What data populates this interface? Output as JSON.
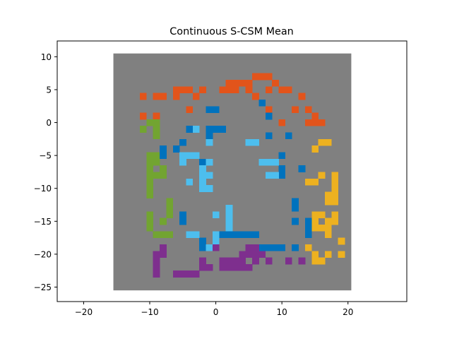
{
  "chart_data": {
    "type": "heatmap",
    "title": "Continuous S-CSM Mean",
    "xlabel": "",
    "ylabel": "",
    "xlim": [
      -24,
      28.9
    ],
    "ylim": [
      -27.2,
      12.4
    ],
    "xticks": [
      -20,
      -10,
      0,
      10,
      20
    ],
    "yticks": [
      10,
      5,
      0,
      -5,
      -10,
      -15,
      -20,
      -25
    ],
    "grid": false,
    "legend": "none",
    "cell_size": 1,
    "background": {
      "x0": -15.5,
      "x1": 20.5,
      "y0": -25.5,
      "y1": 10.5,
      "color": "#808080"
    },
    "colors": {
      "orange": "#e2541b",
      "green": "#72a431",
      "blue": "#0072bd",
      "lightblue": "#4dbeee",
      "yellow": "#edb120",
      "purple": "#7e2f8e"
    },
    "cells": {
      "orange": [
        [
          6,
          7
        ],
        [
          7,
          7
        ],
        [
          8,
          7
        ],
        [
          2,
          6
        ],
        [
          3,
          6
        ],
        [
          4,
          6
        ],
        [
          5,
          6
        ],
        [
          9,
          6
        ],
        [
          -6,
          5
        ],
        [
          -5,
          5
        ],
        [
          -4,
          5
        ],
        [
          -2,
          5
        ],
        [
          1,
          5
        ],
        [
          2,
          5
        ],
        [
          3,
          5
        ],
        [
          5,
          5
        ],
        [
          8,
          5
        ],
        [
          10,
          5
        ],
        [
          11,
          5
        ],
        [
          -11,
          4
        ],
        [
          -9,
          4
        ],
        [
          -8,
          4
        ],
        [
          -6,
          4
        ],
        [
          -3,
          4
        ],
        [
          6,
          4
        ],
        [
          13,
          4
        ],
        [
          -4,
          2
        ],
        [
          8,
          2
        ],
        [
          12,
          2
        ],
        [
          14,
          2
        ],
        [
          -11,
          1
        ],
        [
          -9,
          1
        ],
        [
          15,
          1
        ],
        [
          10,
          0
        ],
        [
          14,
          0
        ],
        [
          15,
          0
        ],
        [
          16,
          0
        ]
      ],
      "green": [
        [
          -10,
          0
        ],
        [
          -9,
          0
        ],
        [
          -11,
          -1
        ],
        [
          -9,
          -1
        ],
        [
          -9,
          -2
        ],
        [
          -10,
          -5
        ],
        [
          -9,
          -5
        ],
        [
          -10,
          -6
        ],
        [
          -9,
          -6
        ],
        [
          -10,
          -7
        ],
        [
          -8,
          -7
        ],
        [
          -10,
          -8
        ],
        [
          -9,
          -8
        ],
        [
          -8,
          -8
        ],
        [
          -10,
          -9
        ],
        [
          -10,
          -10
        ],
        [
          -10,
          -11
        ],
        [
          -7,
          -12
        ],
        [
          -7,
          -13
        ],
        [
          -10,
          -14
        ],
        [
          -7,
          -14
        ],
        [
          -10,
          -15
        ],
        [
          -8,
          -15
        ],
        [
          -10,
          -16
        ],
        [
          -9,
          -17
        ],
        [
          -8,
          -17
        ],
        [
          -7,
          -17
        ]
      ],
      "blue": [
        [
          7,
          3
        ],
        [
          -1,
          2
        ],
        [
          0,
          2
        ],
        [
          8,
          1
        ],
        [
          -4,
          -1
        ],
        [
          -1,
          -1
        ],
        [
          0,
          -1
        ],
        [
          1,
          -1
        ],
        [
          -1,
          -2
        ],
        [
          8,
          -2
        ],
        [
          11,
          -2
        ],
        [
          -5,
          -3
        ],
        [
          -8,
          -4
        ],
        [
          -6,
          -4
        ],
        [
          -8,
          -5
        ],
        [
          10,
          -5
        ],
        [
          -2,
          -6
        ],
        [
          10,
          -7
        ],
        [
          13,
          -7
        ],
        [
          10,
          -8
        ],
        [
          12,
          -12
        ],
        [
          12,
          -13
        ],
        [
          -5,
          -14
        ],
        [
          -5,
          -15
        ],
        [
          12,
          -15
        ],
        [
          14,
          -15
        ],
        [
          14,
          -16
        ],
        [
          1,
          -17
        ],
        [
          2,
          -17
        ],
        [
          3,
          -17
        ],
        [
          4,
          -17
        ],
        [
          5,
          -17
        ],
        [
          6,
          -17
        ],
        [
          14,
          -17
        ],
        [
          -2,
          -18
        ],
        [
          -2,
          -19
        ],
        [
          7,
          -19
        ],
        [
          8,
          -19
        ],
        [
          9,
          -19
        ],
        [
          10,
          -19
        ],
        [
          12,
          -19
        ]
      ],
      "lightblue": [
        [
          -3,
          -1
        ],
        [
          5,
          -3
        ],
        [
          6,
          -3
        ],
        [
          -1,
          -3
        ],
        [
          -5,
          -5
        ],
        [
          -4,
          -5
        ],
        [
          -3,
          -5
        ],
        [
          -5,
          -6
        ],
        [
          -1,
          -6
        ],
        [
          7,
          -6
        ],
        [
          8,
          -6
        ],
        [
          9,
          -6
        ],
        [
          -2,
          -7
        ],
        [
          -2,
          -8
        ],
        [
          -1,
          -8
        ],
        [
          8,
          -8
        ],
        [
          9,
          -8
        ],
        [
          -2,
          -9
        ],
        [
          -4,
          -9
        ],
        [
          -2,
          -10
        ],
        [
          -1,
          -10
        ],
        [
          2,
          -13
        ],
        [
          2,
          -14
        ],
        [
          0,
          -14
        ],
        [
          2,
          -15
        ],
        [
          2,
          -16
        ],
        [
          -4,
          -17
        ],
        [
          -3,
          -17
        ],
        [
          0,
          -17
        ],
        [
          0,
          -18
        ],
        [
          -1,
          -19
        ]
      ],
      "yellow": [
        [
          16,
          -3
        ],
        [
          17,
          -3
        ],
        [
          15,
          -4
        ],
        [
          16,
          -8
        ],
        [
          18,
          -8
        ],
        [
          14,
          -9
        ],
        [
          15,
          -9
        ],
        [
          18,
          -9
        ],
        [
          18,
          -10
        ],
        [
          17,
          -11
        ],
        [
          18,
          -11
        ],
        [
          17,
          -12
        ],
        [
          18,
          -12
        ],
        [
          15,
          -14
        ],
        [
          16,
          -14
        ],
        [
          18,
          -14
        ],
        [
          15,
          -15
        ],
        [
          17,
          -15
        ],
        [
          18,
          -15
        ],
        [
          15,
          -16
        ],
        [
          16,
          -16
        ],
        [
          17,
          -16
        ],
        [
          17,
          -17
        ],
        [
          19,
          -18
        ],
        [
          14,
          -19
        ],
        [
          15,
          -20
        ],
        [
          17,
          -20
        ],
        [
          19,
          -20
        ],
        [
          15,
          -21
        ],
        [
          16,
          -21
        ]
      ],
      "purple": [
        [
          -8,
          -19
        ],
        [
          0,
          -19
        ],
        [
          5,
          -19
        ],
        [
          6,
          -19
        ],
        [
          -9,
          -20
        ],
        [
          -8,
          -20
        ],
        [
          4,
          -20
        ],
        [
          5,
          -20
        ],
        [
          6,
          -20
        ],
        [
          7,
          -20
        ],
        [
          -9,
          -21
        ],
        [
          -2,
          -21
        ],
        [
          1,
          -21
        ],
        [
          2,
          -21
        ],
        [
          3,
          -21
        ],
        [
          4,
          -21
        ],
        [
          6,
          -21
        ],
        [
          8,
          -21
        ],
        [
          11,
          -21
        ],
        [
          13,
          -21
        ],
        [
          -9,
          -22
        ],
        [
          -2,
          -22
        ],
        [
          -1,
          -22
        ],
        [
          1,
          -22
        ],
        [
          2,
          -22
        ],
        [
          3,
          -22
        ],
        [
          4,
          -22
        ],
        [
          5,
          -22
        ],
        [
          -9,
          -23
        ],
        [
          -6,
          -23
        ],
        [
          -5,
          -23
        ],
        [
          -4,
          -23
        ],
        [
          -3,
          -23
        ]
      ]
    }
  }
}
